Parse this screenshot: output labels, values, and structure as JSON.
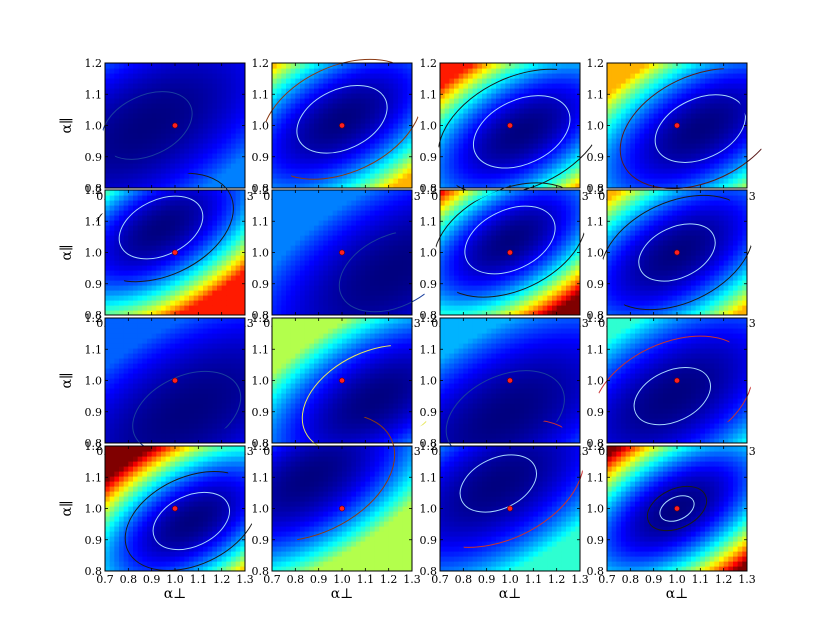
{
  "figure": {
    "rows": 4,
    "cols": 4,
    "x_axis_label": "α⊥",
    "y_axis_label": "α∥",
    "x_ticks": [
      "0.7",
      "0.8",
      "0.9",
      "1.0",
      "1.1",
      "1.2",
      "1.3"
    ],
    "y_ticks": [
      "0.8",
      "0.9",
      "1.0",
      "1.1",
      "1.2"
    ],
    "fiducial_marker_color": "#ff2020"
  },
  "chart_data": [
    {
      "type": "heatmap",
      "row": 1,
      "col": 1,
      "xlim": [
        0.7,
        1.3
      ],
      "ylim": [
        0.8,
        1.2
      ],
      "colormap": "jet",
      "minimum": [
        0.88,
        1.0
      ],
      "fiducial": [
        1.0,
        1.0
      ],
      "peak_level": 0.25,
      "contour_color": "#1a3f9e",
      "contour_levels": [
        0.07
      ],
      "xlabel": "",
      "ylabel": "α∥",
      "grid": false
    },
    {
      "type": "heatmap",
      "row": 1,
      "col": 2,
      "xlim": [
        0.7,
        1.3
      ],
      "ylim": [
        0.8,
        1.2
      ],
      "colormap": "jet",
      "minimum": [
        1.0,
        1.02
      ],
      "fiducial": [
        1.0,
        1.0
      ],
      "peak_level": 0.7,
      "contour_color": "#8a3a14",
      "contour_levels": [
        0.07,
        0.22
      ],
      "xlabel": "",
      "ylabel": "",
      "grid": false
    },
    {
      "type": "heatmap",
      "row": 1,
      "col": 3,
      "xlim": [
        0.7,
        1.3
      ],
      "ylim": [
        0.8,
        1.2
      ],
      "colormap": "jet",
      "minimum": [
        1.05,
        0.98
      ],
      "fiducial": [
        1.0,
        1.0
      ],
      "peak_level": 0.85,
      "contour_color": "#1a1a1a",
      "contour_levels": [
        0.08,
        0.24
      ],
      "xlabel": "",
      "ylabel": "",
      "grid": false
    },
    {
      "type": "heatmap",
      "row": 1,
      "col": 4,
      "xlim": [
        0.7,
        1.3
      ],
      "ylim": [
        0.8,
        1.2
      ],
      "colormap": "jet",
      "minimum": [
        1.1,
        0.99
      ],
      "fiducial": [
        1.0,
        1.0
      ],
      "peak_level": 0.7,
      "contour_color": "#5a1a1a",
      "contour_levels": [
        0.07,
        0.22
      ],
      "xlabel": "",
      "ylabel": "",
      "grid": false
    },
    {
      "type": "heatmap",
      "row": 2,
      "col": 1,
      "xlim": [
        0.7,
        1.3
      ],
      "ylim": [
        0.8,
        1.2
      ],
      "colormap": "jet",
      "minimum": [
        0.94,
        1.08
      ],
      "fiducial": [
        1.0,
        1.0
      ],
      "peak_level": 0.85,
      "contour_color": "#1a1a1a",
      "contour_levels": [
        0.06,
        0.18
      ],
      "xlabel": "",
      "ylabel": "α∥",
      "grid": false
    },
    {
      "type": "heatmap",
      "row": 2,
      "col": 2,
      "xlim": [
        0.7,
        1.3
      ],
      "ylim": [
        0.8,
        1.2
      ],
      "colormap": "jet",
      "minimum": [
        1.22,
        0.94
      ],
      "fiducial": [
        1.0,
        1.0
      ],
      "peak_level": 0.25,
      "contour_color": "#1a3f9e",
      "contour_levels": [
        0.1
      ],
      "xlabel": "",
      "ylabel": "",
      "grid": false
    },
    {
      "type": "heatmap",
      "row": 2,
      "col": 3,
      "xlim": [
        0.7,
        1.3
      ],
      "ylim": [
        0.8,
        1.2
      ],
      "colormap": "jet",
      "minimum": [
        1.0,
        1.04
      ],
      "fiducial": [
        1.0,
        1.0
      ],
      "peak_level": 1.0,
      "contour_color": "#1a1a1a",
      "contour_levels": [
        0.07,
        0.2
      ],
      "xlabel": "",
      "ylabel": "",
      "grid": false
    },
    {
      "type": "heatmap",
      "row": 2,
      "col": 4,
      "xlim": [
        0.7,
        1.3
      ],
      "ylim": [
        0.8,
        1.2
      ],
      "colormap": "jet",
      "minimum": [
        1.0,
        1.0
      ],
      "fiducial": [
        1.0,
        1.0
      ],
      "peak_level": 0.7,
      "contour_color": "#1a1a1a",
      "contour_levels": [
        0.05,
        0.2
      ],
      "xlabel": "",
      "ylabel": "",
      "grid": false
    },
    {
      "type": "heatmap",
      "row": 3,
      "col": 1,
      "xlim": [
        0.7,
        1.3
      ],
      "ylim": [
        0.8,
        1.2
      ],
      "colormap": "jet",
      "minimum": [
        1.05,
        0.9
      ],
      "fiducial": [
        1.0,
        1.0
      ],
      "peak_level": 0.22,
      "contour_color": "#1a3f9e",
      "contour_levels": [
        0.1
      ],
      "xlabel": "",
      "ylabel": "α∥",
      "grid": false
    },
    {
      "type": "heatmap",
      "row": 3,
      "col": 2,
      "xlim": [
        0.7,
        1.3
      ],
      "ylim": [
        0.8,
        1.2
      ],
      "colormap": "jet",
      "minimum": [
        1.14,
        0.94
      ],
      "fiducial": [
        1.0,
        1.0
      ],
      "peak_level": 0.55,
      "contour_color": "#e8e860",
      "contour_levels": [
        0.18
      ],
      "xlabel": "",
      "ylabel": "",
      "grid": false
    },
    {
      "type": "heatmap",
      "row": 3,
      "col": 3,
      "xlim": [
        0.7,
        1.3
      ],
      "ylim": [
        0.8,
        1.2
      ],
      "colormap": "jet",
      "minimum": [
        0.98,
        0.89
      ],
      "fiducial": [
        1.0,
        1.0
      ],
      "peak_level": 0.3,
      "contour_color": "#1a3f9e",
      "contour_levels": [
        0.12
      ],
      "xlabel": "",
      "ylabel": "",
      "grid": false
    },
    {
      "type": "heatmap",
      "row": 3,
      "col": 4,
      "xlim": [
        0.7,
        1.3
      ],
      "ylim": [
        0.8,
        1.2
      ],
      "colormap": "jet",
      "minimum": [
        0.98,
        0.95
      ],
      "fiducial": [
        1.0,
        1.0
      ],
      "peak_level": 0.42,
      "contour_color": "#c83232",
      "contour_levels": [
        0.05,
        0.22
      ],
      "xlabel": "",
      "ylabel": "",
      "grid": false
    },
    {
      "type": "heatmap",
      "row": 4,
      "col": 1,
      "xlim": [
        0.7,
        1.3
      ],
      "ylim": [
        0.8,
        1.2
      ],
      "colormap": "jet",
      "minimum": [
        1.07,
        0.96
      ],
      "fiducial": [
        1.0,
        1.0
      ],
      "peak_level": 1.0,
      "contour_color": "#1a1a1a",
      "contour_levels": [
        0.05,
        0.15
      ],
      "xlabel": "α⊥",
      "ylabel": "α∥",
      "grid": false
    },
    {
      "type": "heatmap",
      "row": 4,
      "col": 2,
      "xlim": [
        0.7,
        1.3
      ],
      "ylim": [
        0.8,
        1.2
      ],
      "colormap": "jet",
      "minimum": [
        0.86,
        1.1
      ],
      "fiducial": [
        1.0,
        1.0
      ],
      "peak_level": 0.55,
      "contour_color": "#8a3a14",
      "contour_levels": [
        0.25
      ],
      "xlabel": "α⊥",
      "ylabel": "",
      "grid": false
    },
    {
      "type": "heatmap",
      "row": 4,
      "col": 3,
      "xlim": [
        0.7,
        1.3
      ],
      "ylim": [
        0.8,
        1.2
      ],
      "colormap": "jet",
      "minimum": [
        0.95,
        1.08
      ],
      "fiducial": [
        1.0,
        1.0
      ],
      "peak_level": 0.42,
      "contour_color": "#c83232",
      "contour_levels": [
        0.05,
        0.25
      ],
      "xlabel": "α⊥",
      "ylabel": "",
      "grid": false
    },
    {
      "type": "heatmap",
      "row": 4,
      "col": 4,
      "xlim": [
        0.7,
        1.3
      ],
      "ylim": [
        0.8,
        1.2
      ],
      "colormap": "jet",
      "minimum": [
        1.0,
        1.0
      ],
      "fiducial": [
        1.0,
        1.0
      ],
      "peak_level": 1.0,
      "contour_color": "#1a1a1a",
      "contour_levels": [
        0.01,
        0.03
      ],
      "xlabel": "α⊥",
      "ylabel": "",
      "grid": false
    }
  ]
}
